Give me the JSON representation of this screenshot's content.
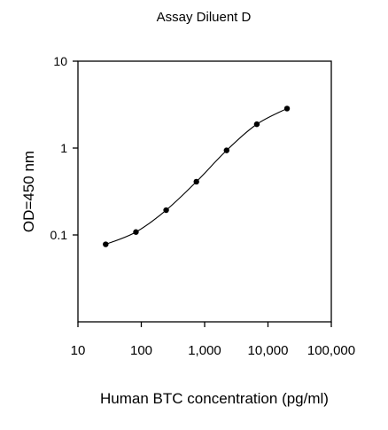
{
  "chart_data": {
    "type": "line",
    "title": "Assay Diluent D",
    "xlabel": "Human BTC concentration (pg/ml)",
    "ylabel": "OD=450 nm",
    "x_scale": "log",
    "y_scale": "log",
    "xlim": [
      10,
      100000
    ],
    "ylim": [
      0.01,
      10
    ],
    "x_ticks": [
      10,
      100,
      1000,
      10000,
      100000
    ],
    "x_tick_labels": [
      "10",
      "100",
      "1,000",
      "10,000",
      "100,000"
    ],
    "y_ticks": [
      0.1,
      1,
      10
    ],
    "y_tick_labels": [
      "0.1",
      "1",
      "10"
    ],
    "grid": false,
    "series": [
      {
        "x": [
          27.4,
          82.3,
          247,
          741,
          2222,
          6667,
          20000
        ],
        "y": [
          0.078,
          0.108,
          0.193,
          0.41,
          0.94,
          1.88,
          2.85
        ]
      }
    ]
  }
}
